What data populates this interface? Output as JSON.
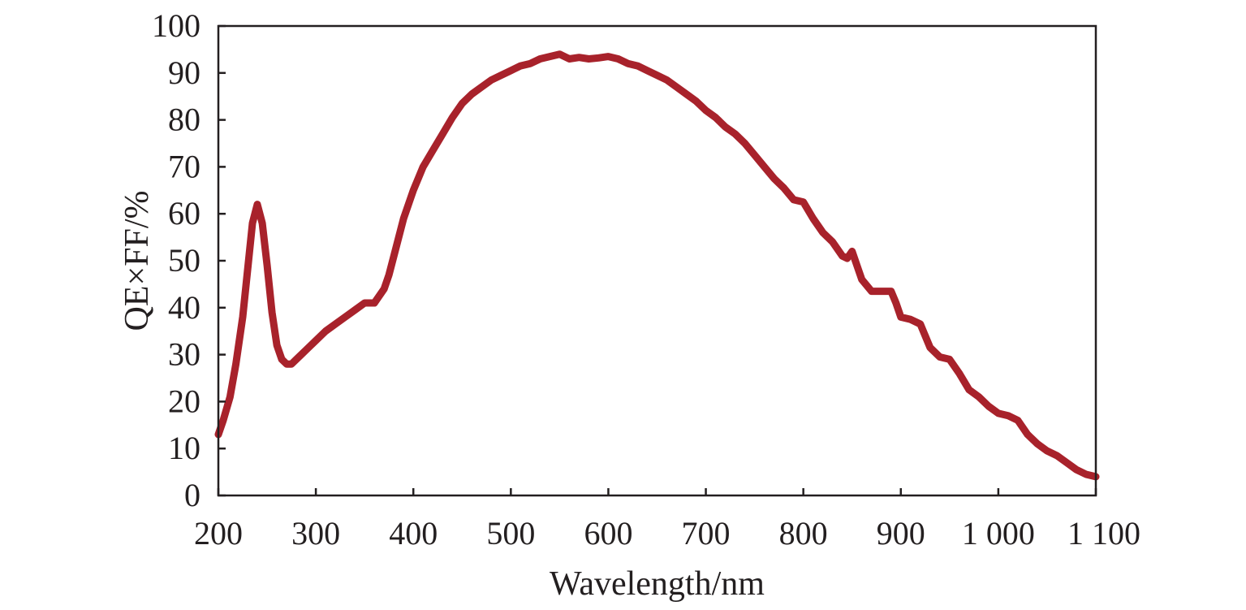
{
  "chart_data": {
    "type": "line",
    "xlabel": "Wavelength/nm",
    "ylabel": "QE×FF/%",
    "xlim": [
      200,
      1100
    ],
    "ylim": [
      0,
      100
    ],
    "x_ticks": [
      200,
      300,
      400,
      500,
      600,
      700,
      800,
      900,
      1000,
      1100
    ],
    "x_tick_labels": [
      "200",
      "300",
      "400",
      "500",
      "600",
      "700",
      "800",
      "900",
      "1 000",
      "1 100"
    ],
    "y_ticks": [
      0,
      10,
      20,
      30,
      40,
      50,
      60,
      70,
      80,
      90,
      100
    ],
    "y_tick_labels": [
      "0",
      "10",
      "20",
      "30",
      "40",
      "50",
      "60",
      "70",
      "80",
      "90",
      "100"
    ],
    "grid": false,
    "series": [
      {
        "color": "#a8222b",
        "x": [
          200,
          205,
          212,
          218,
          225,
          230,
          235,
          240,
          245,
          250,
          255,
          260,
          265,
          270,
          275,
          280,
          285,
          290,
          300,
          310,
          320,
          330,
          340,
          350,
          360,
          370,
          375,
          380,
          390,
          400,
          410,
          420,
          430,
          440,
          450,
          460,
          470,
          480,
          490,
          500,
          510,
          520,
          530,
          540,
          550,
          560,
          570,
          580,
          590,
          600,
          610,
          620,
          630,
          640,
          650,
          660,
          670,
          680,
          690,
          700,
          710,
          720,
          730,
          740,
          750,
          760,
          770,
          780,
          790,
          800,
          810,
          820,
          830,
          840,
          845,
          850,
          855,
          860,
          870,
          880,
          890,
          895,
          900,
          910,
          920,
          930,
          940,
          950,
          960,
          970,
          980,
          990,
          1000,
          1010,
          1020,
          1030,
          1040,
          1050,
          1060,
          1070,
          1080,
          1090,
          1100
        ],
        "values": [
          13,
          16,
          21,
          28,
          38,
          48,
          58,
          62,
          58,
          49,
          39,
          32,
          29,
          28,
          28,
          29,
          30,
          31,
          33,
          35,
          36.5,
          38,
          39.5,
          41,
          41,
          44,
          47,
          51,
          59,
          65,
          70,
          73.5,
          77,
          80.5,
          83.5,
          85.5,
          87,
          88.5,
          89.5,
          90.5,
          91.5,
          92,
          93,
          93.5,
          94,
          93,
          93.3,
          93,
          93.2,
          93.5,
          93,
          92,
          91.5,
          90.5,
          89.5,
          88.5,
          87,
          85.5,
          84,
          82,
          80.5,
          78.5,
          77,
          75,
          72.5,
          70,
          67.5,
          65.5,
          63,
          62.5,
          59,
          56,
          54,
          51,
          50.5,
          52,
          49,
          46,
          43.5,
          43.5,
          43.5,
          41,
          38,
          37.5,
          36.5,
          31.5,
          29.5,
          29,
          26,
          22.5,
          21,
          19,
          17.5,
          17,
          16,
          13,
          11,
          9.5,
          8.5,
          7,
          5.5,
          4.5,
          4
        ]
      }
    ]
  }
}
